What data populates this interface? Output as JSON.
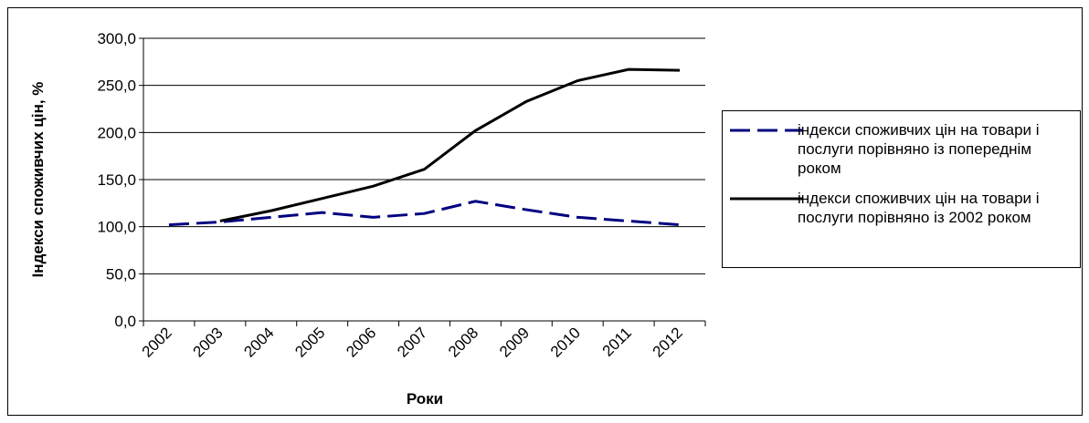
{
  "chart_data": {
    "type": "line",
    "y_label": "Індекси споживчих цін, %",
    "x_label": "Роки",
    "categories": [
      "2002",
      "2003",
      "2004",
      "2005",
      "2006",
      "2007",
      "2008",
      "2009",
      "2010",
      "2011",
      "2012"
    ],
    "series": [
      {
        "name": "індекси споживчих цін на товари і послуги порівняно із попереднім роком",
        "color": "#000080",
        "dash": true,
        "values": [
          102,
          105,
          110,
          115,
          110,
          114,
          127,
          118,
          110,
          106,
          102
        ]
      },
      {
        "name": "індекси споживчих цін на товари і послуги порівняно із 2002 роком",
        "color": "#000000",
        "dash": false,
        "values": [
          null,
          106,
          117,
          130,
          143,
          161,
          202,
          233,
          255,
          267,
          266
        ]
      }
    ],
    "ylim": [
      0,
      300
    ],
    "yticks": [
      {
        "value": 0,
        "label": "0,0"
      },
      {
        "value": 50,
        "label": "50,0"
      },
      {
        "value": 100,
        "label": "100,0"
      },
      {
        "value": 150,
        "label": "150,0"
      },
      {
        "value": 200,
        "label": "200,0"
      },
      {
        "value": 250,
        "label": "250,0"
      },
      {
        "value": 300,
        "label": "300,0"
      }
    ],
    "grid": true
  }
}
